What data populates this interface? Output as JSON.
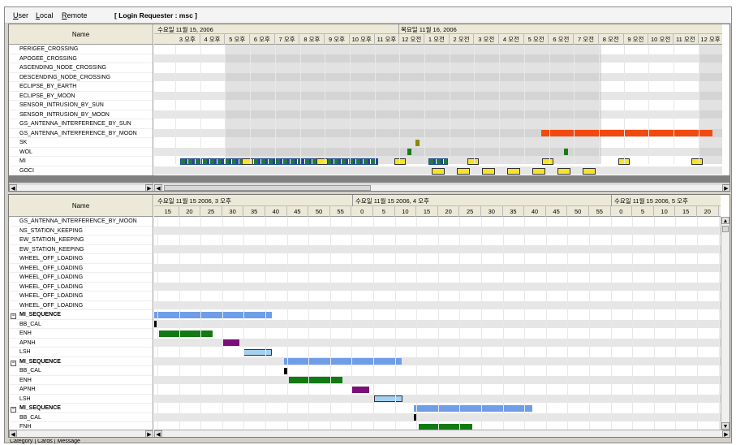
{
  "menu": {
    "user": "User",
    "local": "Local",
    "remote": "Remote",
    "login": "[ Login Requester : msc ]"
  },
  "top": {
    "name_header": "Name",
    "day1": "수요일 11월 15, 2006",
    "day2": "목요일 11월 16, 2006",
    "hours": [
      "3 오후",
      "4 오후",
      "5 오후",
      "6 오후",
      "7 오후",
      "8 오후",
      "9 오후",
      "10 오후",
      "11 오후",
      "12 오전",
      "1 오전",
      "2 오전",
      "3 오전",
      "4 오전",
      "5 오전",
      "6 오전",
      "7 오전",
      "8 오전",
      "9 오전",
      "10 오전",
      "11 오전",
      "12 오후"
    ],
    "rows": [
      "PERIGEE_CROSSING",
      "APOGEE_CROSSING",
      "ASCENDING_NODE_CROSSING",
      "DESCENDING_NODE_CROSSING",
      "ECLIPSE_BY_EARTH",
      "ECLIPSE_BY_MOON",
      "SENSOR_INTRUSION_BY_SUN",
      "SENSOR_INTRUSION_BY_MOON",
      "GS_ANTENNA_INTERFERENCE_BY_SUN",
      "GS_ANTENNA_INTERFERENCE_BY_MOON",
      "SK",
      "WOL",
      "MI",
      "GOCI"
    ]
  },
  "bottom": {
    "name_header": "Name",
    "hdr1": "수요일 11월 15 2006, 3 오후",
    "hdr2": "수요일 11월 15 2006, 4 오후",
    "hdr3": "수요일 11월 15 2006, 5 오후",
    "minutes": [
      "15",
      "20",
      "25",
      "30",
      "35",
      "40",
      "45",
      "50",
      "55",
      "0",
      "5",
      "10",
      "15",
      "20",
      "25",
      "30",
      "35",
      "40",
      "45",
      "50",
      "55",
      "0",
      "5",
      "10",
      "15",
      "20"
    ],
    "rows": [
      {
        "label": "GS_ANTENNA_INTERFERENCE_BY_MOON",
        "grp": false
      },
      {
        "label": "NS_STATION_KEEPING",
        "grp": false
      },
      {
        "label": "EW_STATION_KEEPING",
        "grp": false
      },
      {
        "label": "EW_STATION_KEEPING",
        "grp": false
      },
      {
        "label": "WHEEL_OFF_LOADING",
        "grp": false
      },
      {
        "label": "WHEEL_OFF_LOADING",
        "grp": false
      },
      {
        "label": "WHEEL_OFF_LOADING",
        "grp": false
      },
      {
        "label": "WHEEL_OFF_LOADING",
        "grp": false
      },
      {
        "label": "WHEEL_OFF_LOADING",
        "grp": false
      },
      {
        "label": "WHEEL_OFF_LOADING",
        "grp": false
      },
      {
        "label": "MI_SEQUENCE",
        "grp": true
      },
      {
        "label": "BB_CAL",
        "grp": false
      },
      {
        "label": "ENH",
        "grp": false
      },
      {
        "label": "APNH",
        "grp": false
      },
      {
        "label": "LSH",
        "grp": false
      },
      {
        "label": "MI_SEQUENCE",
        "grp": true
      },
      {
        "label": "BB_CAL",
        "grp": false
      },
      {
        "label": "ENH",
        "grp": false
      },
      {
        "label": "APNH",
        "grp": false
      },
      {
        "label": "LSH",
        "grp": false
      },
      {
        "label": "MI_SEQUENCE",
        "grp": true
      },
      {
        "label": "BB_CAL",
        "grp": false
      },
      {
        "label": "FNH",
        "grp": false
      }
    ]
  },
  "status_tabs": "Category | Cards | Message",
  "colors": {
    "seq": "#6f9de8",
    "enh": "#127a12",
    "apnh": "#7a0f7a",
    "lsh": "#a6d0f0",
    "moon": "#f04a10",
    "sk": "#8a8a00",
    "wol": "#1a7a1a",
    "goci": "#f5e42a"
  }
}
